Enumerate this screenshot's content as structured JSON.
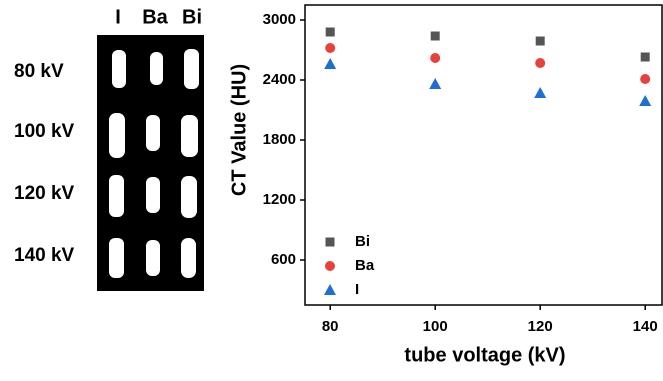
{
  "image_panel": {
    "columns": [
      "I",
      "Ba",
      "Bi"
    ],
    "rows": [
      "80 kV",
      "100 kV",
      "120 kV",
      "140 kV"
    ]
  },
  "chart_data": {
    "type": "scatter",
    "x_label": "tube voltage (kV)",
    "y_label": "CT Value (HU)",
    "xlim": [
      75.2,
      143.2
    ],
    "xticks": [
      80,
      100,
      120,
      140
    ],
    "ylim": [
      150,
      3150
    ],
    "yticks": [
      600,
      1200,
      1800,
      2400,
      3000
    ],
    "legend": "lower left",
    "series": [
      {
        "name": "Bi",
        "color": "#555555",
        "marker": "square",
        "x": [
          80,
          100,
          120,
          140
        ],
        "values": [
          2880,
          2840,
          2790,
          2630
        ]
      },
      {
        "name": "Ba",
        "color": "#e8413c",
        "marker": "circle",
        "x": [
          80,
          100,
          120,
          140
        ],
        "values": [
          2720,
          2620,
          2570,
          2410
        ]
      },
      {
        "name": "I",
        "color": "#1f6fd0",
        "marker": "triangle",
        "x": [
          80,
          100,
          120,
          140
        ],
        "values": [
          2560,
          2360,
          2270,
          2190
        ]
      }
    ]
  }
}
